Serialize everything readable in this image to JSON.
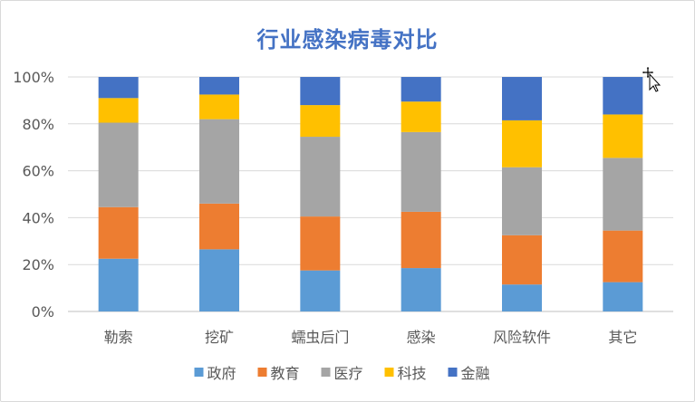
{
  "chart_data": {
    "type": "bar",
    "stacked": true,
    "percent": true,
    "title": "行业感染病毒对比",
    "categories": [
      "勒索",
      "挖矿",
      "蠕虫后门",
      "感染",
      "风险软件",
      "其它"
    ],
    "series": [
      {
        "name": "政府",
        "color": "#5b9bd5",
        "values": [
          22.5,
          26.5,
          17.5,
          18.5,
          11.5,
          12.5
        ]
      },
      {
        "name": "教育",
        "color": "#ed7d31",
        "values": [
          22,
          19.5,
          23,
          24,
          21,
          22
        ]
      },
      {
        "name": "医疗",
        "color": "#a5a5a5",
        "values": [
          36,
          36,
          34,
          34,
          29,
          31
        ]
      },
      {
        "name": "科技",
        "color": "#ffc000",
        "values": [
          10.5,
          10.5,
          13.5,
          13,
          20,
          18.5
        ]
      },
      {
        "name": "金融",
        "color": "#4472c4",
        "values": [
          9,
          7.5,
          12,
          10.5,
          18.5,
          16
        ]
      }
    ],
    "ylim": [
      0,
      100
    ],
    "yticks": [
      "0%",
      "20%",
      "40%",
      "60%",
      "80%",
      "100%"
    ],
    "grid": true,
    "legend": "bottom"
  }
}
